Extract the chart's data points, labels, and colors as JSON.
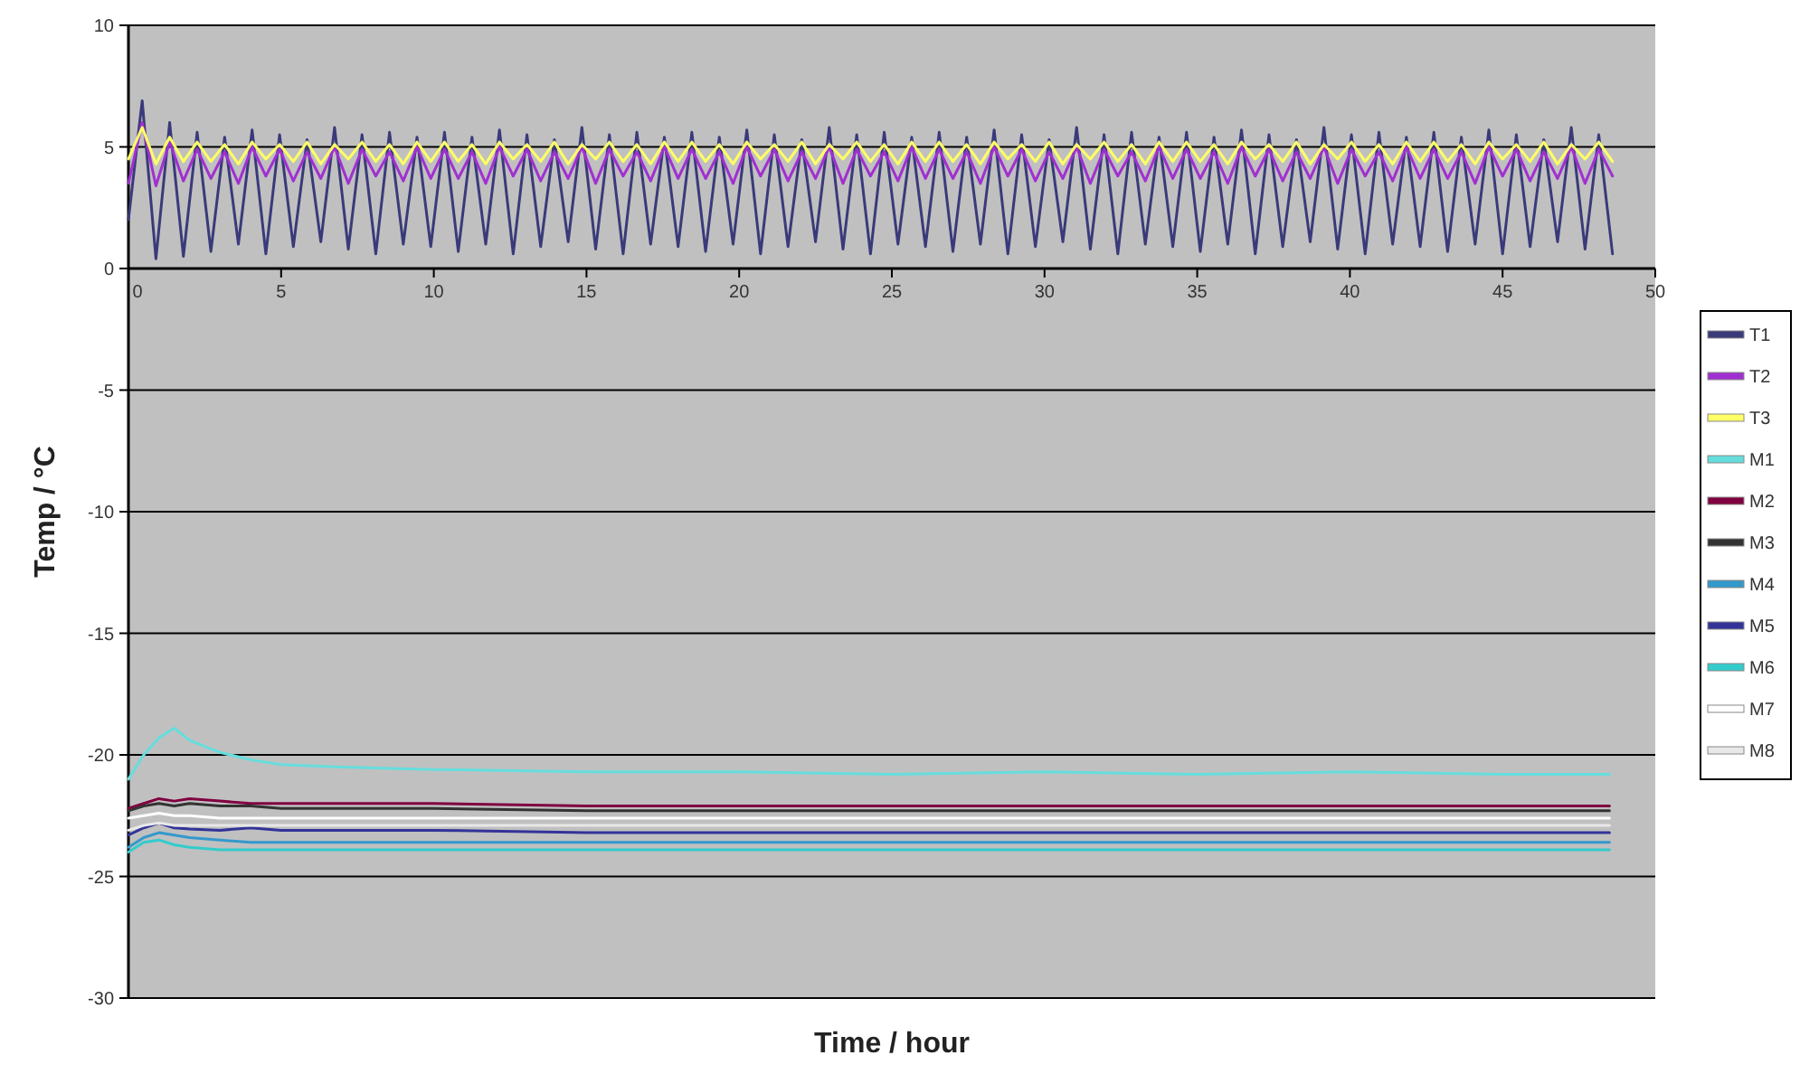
{
  "chart_data": {
    "type": "line",
    "xlabel": "Time / hour",
    "ylabel": "Temp / °C",
    "xlim": [
      0,
      50
    ],
    "xticks": [
      0,
      5,
      10,
      15,
      20,
      25,
      30,
      35,
      40,
      45,
      50
    ],
    "ylim": [
      -30,
      10
    ],
    "yticks": [
      -30,
      -25,
      -20,
      -15,
      -10,
      -5,
      0,
      5,
      10
    ],
    "grid": "y",
    "legend": "right",
    "marker": "none",
    "line_style": "solid",
    "x": [
      0,
      0.45,
      0.9,
      1.35,
      1.8,
      2.25,
      2.7,
      3.15,
      3.6,
      4.05,
      4.5,
      4.95,
      5.4,
      5.85,
      6.3,
      6.75,
      7.2,
      7.65,
      8.1,
      8.55,
      9,
      9.45,
      9.9,
      10.35,
      10.8,
      11.25,
      11.7,
      12.15,
      12.6,
      13.05,
      13.5,
      13.95,
      14.4,
      14.85,
      15.3,
      15.75,
      16.2,
      16.65,
      17.1,
      17.55,
      18,
      18.45,
      18.9,
      19.35,
      19.8,
      20.25,
      20.7,
      21.15,
      21.6,
      22.05,
      22.5,
      22.95,
      23.4,
      23.85,
      24.3,
      24.75,
      25.2,
      25.65,
      26.1,
      26.55,
      27,
      27.45,
      27.9,
      28.35,
      28.8,
      29.25,
      29.7,
      30.15,
      30.6,
      31.05,
      31.5,
      31.95,
      32.4,
      32.85,
      33.3,
      33.75,
      34.2,
      34.65,
      35.1,
      35.55,
      36,
      36.45,
      36.9,
      37.35,
      37.8,
      38.25,
      38.7,
      39.15,
      39.6,
      40.05,
      40.5,
      40.95,
      41.4,
      41.85,
      42.3,
      42.75,
      43.2,
      43.65,
      44.1,
      44.55,
      45,
      45.45,
      45.9,
      46.35,
      46.8,
      47.25,
      47.7,
      48.15,
      48.6
    ],
    "series": [
      {
        "name": "T1",
        "color": "#3a3a7a",
        "values": [
          2.0,
          6.9,
          0.4,
          6.0,
          0.5,
          5.6,
          0.7,
          5.4,
          1.0,
          5.7,
          0.6,
          5.5,
          0.9,
          5.3,
          1.1,
          5.8,
          0.8,
          5.5,
          0.6,
          5.6,
          1.0,
          5.4,
          0.9,
          5.6,
          0.7,
          5.4,
          1.0,
          5.7,
          0.6,
          5.5,
          0.9,
          5.3,
          1.1,
          5.8,
          0.8,
          5.5,
          0.6,
          5.6,
          1.0,
          5.4,
          0.9,
          5.6,
          0.7,
          5.4,
          1.0,
          5.7,
          0.6,
          5.5,
          0.9,
          5.3,
          1.1,
          5.8,
          0.8,
          5.5,
          0.6,
          5.6,
          1.0,
          5.4,
          0.9,
          5.6,
          0.7,
          5.4,
          1.0,
          5.7,
          0.6,
          5.5,
          0.9,
          5.3,
          1.1,
          5.8,
          0.8,
          5.5,
          0.6,
          5.6,
          1.0,
          5.4,
          0.9,
          5.6,
          0.7,
          5.4,
          1.0,
          5.7,
          0.6,
          5.5,
          0.9,
          5.3,
          1.1,
          5.8,
          0.8,
          5.5,
          0.6,
          5.6,
          1.0,
          5.4,
          0.9,
          5.6,
          0.7,
          5.4,
          1.0,
          5.7,
          0.6,
          5.5,
          0.9,
          5.3,
          1.1,
          5.8,
          0.8,
          5.5,
          0.6
        ]
      },
      {
        "name": "T2",
        "color": "#a030d0",
        "values": [
          3.5,
          6.0,
          3.4,
          5.2,
          3.6,
          4.9,
          3.7,
          4.8,
          3.5,
          5.0,
          3.8,
          4.9,
          3.6,
          4.8,
          3.7,
          5.0,
          3.5,
          4.9,
          3.8,
          4.8,
          3.6,
          5.0,
          3.7,
          4.9,
          3.7,
          4.8,
          3.5,
          5.0,
          3.8,
          4.9,
          3.6,
          4.8,
          3.7,
          5.0,
          3.5,
          4.9,
          3.8,
          4.8,
          3.6,
          5.0,
          3.7,
          4.9,
          3.7,
          4.8,
          3.5,
          5.0,
          3.8,
          4.9,
          3.6,
          4.8,
          3.7,
          5.0,
          3.5,
          4.9,
          3.8,
          4.8,
          3.6,
          5.0,
          3.7,
          4.9,
          3.7,
          4.8,
          3.5,
          5.0,
          3.8,
          4.9,
          3.6,
          4.8,
          3.7,
          5.0,
          3.5,
          4.9,
          3.8,
          4.8,
          3.6,
          5.0,
          3.7,
          4.9,
          3.7,
          4.8,
          3.5,
          5.0,
          3.8,
          4.9,
          3.6,
          4.8,
          3.7,
          5.0,
          3.5,
          4.9,
          3.8,
          4.8,
          3.6,
          5.0,
          3.7,
          4.9,
          3.7,
          4.8,
          3.5,
          5.0,
          3.8,
          4.9,
          3.6,
          4.8,
          3.7,
          5.0,
          3.5,
          4.9,
          3.8
        ]
      },
      {
        "name": "T3",
        "color": "#ffff66",
        "values": [
          4.5,
          5.8,
          4.3,
          5.4,
          4.4,
          5.2,
          4.4,
          5.1,
          4.3,
          5.2,
          4.5,
          5.1,
          4.4,
          5.2,
          4.3,
          5.1,
          4.5,
          5.2,
          4.4,
          5.1,
          4.3,
          5.2,
          4.4,
          5.2,
          4.4,
          5.1,
          4.3,
          5.2,
          4.5,
          5.1,
          4.4,
          5.2,
          4.3,
          5.1,
          4.5,
          5.2,
          4.4,
          5.1,
          4.3,
          5.2,
          4.4,
          5.2,
          4.4,
          5.1,
          4.3,
          5.2,
          4.5,
          5.1,
          4.4,
          5.2,
          4.3,
          5.1,
          4.5,
          5.2,
          4.4,
          5.1,
          4.3,
          5.2,
          4.4,
          5.2,
          4.4,
          5.1,
          4.3,
          5.2,
          4.5,
          5.1,
          4.4,
          5.2,
          4.3,
          5.1,
          4.5,
          5.2,
          4.4,
          5.1,
          4.3,
          5.2,
          4.4,
          5.2,
          4.4,
          5.1,
          4.3,
          5.2,
          4.5,
          5.1,
          4.4,
          5.2,
          4.3,
          5.1,
          4.5,
          5.2,
          4.4,
          5.1,
          4.3,
          5.2,
          4.4,
          5.2,
          4.4,
          5.1,
          4.3,
          5.2,
          4.5,
          5.1,
          4.4,
          5.2,
          4.3,
          5.1,
          4.5,
          5.2,
          4.4
        ]
      },
      {
        "name": "M1",
        "color": "#66dddd",
        "x": [
          0,
          0.5,
          1,
          1.5,
          2,
          3,
          4,
          5,
          7,
          10,
          15,
          20,
          25,
          30,
          35,
          40,
          45,
          48.5
        ],
        "values": [
          -21,
          -20,
          -19.3,
          -18.9,
          -19.4,
          -19.9,
          -20.2,
          -20.4,
          -20.5,
          -20.6,
          -20.7,
          -20.7,
          -20.8,
          -20.7,
          -20.8,
          -20.7,
          -20.8,
          -20.8
        ]
      },
      {
        "name": "M2",
        "color": "#800040",
        "x": [
          0,
          0.5,
          1,
          1.5,
          2,
          3,
          4,
          5,
          7,
          10,
          15,
          20,
          25,
          30,
          35,
          40,
          45,
          48.5
        ],
        "values": [
          -22.2,
          -22,
          -21.8,
          -21.9,
          -21.8,
          -21.9,
          -22,
          -22,
          -22,
          -22,
          -22.1,
          -22.1,
          -22.1,
          -22.1,
          -22.1,
          -22.1,
          -22.1,
          -22.1
        ]
      },
      {
        "name": "M3",
        "color": "#333333",
        "x": [
          0,
          0.5,
          1,
          1.5,
          2,
          3,
          4,
          5,
          7,
          10,
          15,
          20,
          25,
          30,
          35,
          40,
          45,
          48.5
        ],
        "values": [
          -22.3,
          -22.1,
          -22,
          -22.1,
          -22,
          -22.1,
          -22.1,
          -22.2,
          -22.2,
          -22.2,
          -22.3,
          -22.3,
          -22.3,
          -22.3,
          -22.3,
          -22.3,
          -22.3,
          -22.3
        ]
      },
      {
        "name": "M4",
        "color": "#3399cc",
        "x": [
          0,
          0.5,
          1,
          1.5,
          2,
          3,
          4,
          5,
          7,
          10,
          15,
          20,
          25,
          30,
          35,
          40,
          45,
          48.5
        ],
        "values": [
          -23.8,
          -23.4,
          -23.2,
          -23.3,
          -23.4,
          -23.5,
          -23.6,
          -23.6,
          -23.6,
          -23.6,
          -23.6,
          -23.6,
          -23.6,
          -23.6,
          -23.6,
          -23.6,
          -23.6,
          -23.6
        ]
      },
      {
        "name": "M5",
        "color": "#333399",
        "x": [
          0,
          0.5,
          1,
          1.5,
          2,
          3,
          4,
          5,
          7,
          10,
          15,
          20,
          25,
          30,
          35,
          40,
          45,
          48.5
        ],
        "values": [
          -23.3,
          -23,
          -22.8,
          -23,
          -23.05,
          -23.1,
          -23,
          -23.1,
          -23.1,
          -23.1,
          -23.2,
          -23.2,
          -23.2,
          -23.2,
          -23.2,
          -23.2,
          -23.2,
          -23.2
        ]
      },
      {
        "name": "M6",
        "color": "#33cccc",
        "x": [
          0,
          0.5,
          1,
          1.5,
          2,
          3,
          4,
          5,
          7,
          10,
          15,
          20,
          25,
          30,
          35,
          40,
          45,
          48.5
        ],
        "values": [
          -24,
          -23.6,
          -23.5,
          -23.7,
          -23.8,
          -23.9,
          -23.9,
          -23.9,
          -23.9,
          -23.9,
          -23.9,
          -23.9,
          -23.9,
          -23.9,
          -23.9,
          -23.9,
          -23.9,
          -23.9
        ]
      },
      {
        "name": "M7",
        "color": "#ffffff",
        "x": [
          0,
          0.5,
          1,
          1.5,
          2,
          3,
          4,
          5,
          7,
          10,
          15,
          20,
          25,
          30,
          35,
          40,
          45,
          48.5
        ],
        "values": [
          -22.6,
          -22.5,
          -22.4,
          -22.5,
          -22.5,
          -22.6,
          -22.6,
          -22.6,
          -22.6,
          -22.6,
          -22.6,
          -22.6,
          -22.6,
          -22.6,
          -22.6,
          -22.6,
          -22.6,
          -22.6
        ]
      },
      {
        "name": "M8",
        "color": "#e8e8e8",
        "x": [
          0,
          0.5,
          1,
          1.5,
          2,
          3,
          4,
          5,
          7,
          10,
          15,
          20,
          25,
          30,
          35,
          40,
          45,
          48.5
        ],
        "values": [
          -23.1,
          -22.9,
          -22.8,
          -22.9,
          -22.9,
          -22.9,
          -22.9,
          -22.9,
          -22.9,
          -22.9,
          -22.9,
          -22.9,
          -22.9,
          -22.9,
          -22.9,
          -22.9,
          -22.9,
          -22.9
        ]
      }
    ]
  }
}
